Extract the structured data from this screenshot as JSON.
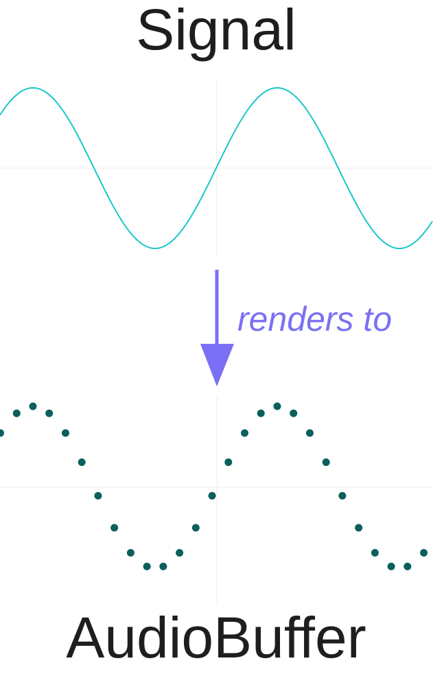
{
  "title_top": "Signal",
  "title_bottom": "AudioBuffer",
  "arrow_label": "renders to",
  "colors": {
    "signal_curve": "#19c7c7",
    "sample_dots": "#0b5f5c",
    "arrow": "#7b70f5",
    "text": "#1e1e1e",
    "gridlines": "#eeeeee"
  },
  "waveform": {
    "type": "sine",
    "cycles_shown": 2,
    "samples_per_cycle": 15
  }
}
